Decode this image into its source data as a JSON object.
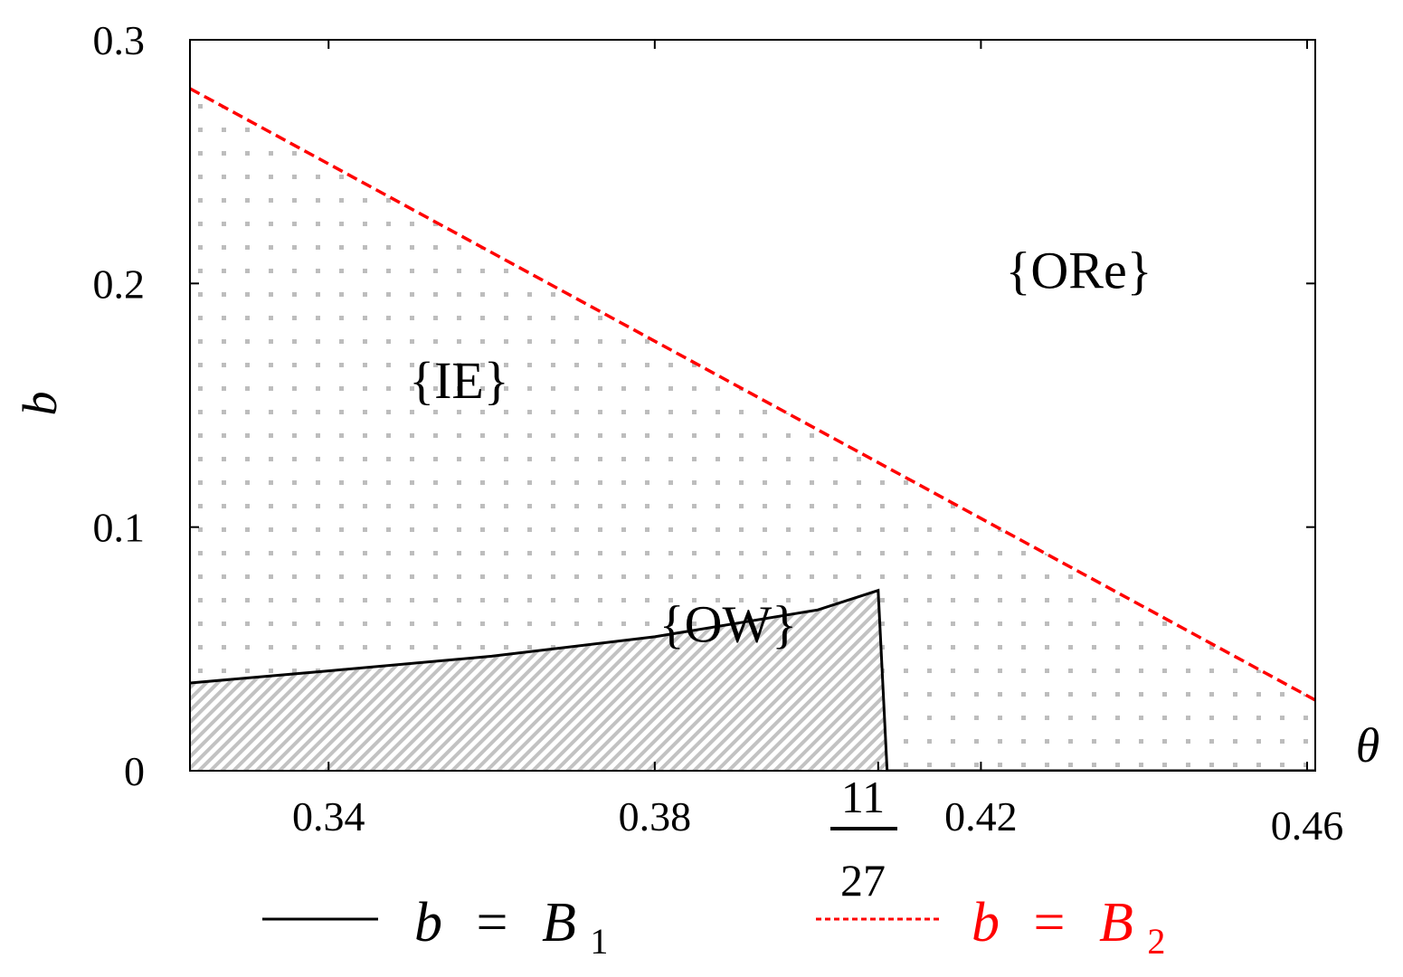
{
  "chart_data": {
    "type": "line",
    "title": "",
    "xlabel": "θ",
    "ylabel": "b",
    "xlim": [
      0.323,
      0.461
    ],
    "ylim": [
      0,
      0.3
    ],
    "x_ticks": [
      {
        "value": 0.34,
        "label": "0.34"
      },
      {
        "value": 0.38,
        "label": "0.38"
      },
      {
        "value": 0.42,
        "label": "0.42"
      },
      {
        "value": 0.46,
        "label": "0.46"
      }
    ],
    "y_ticks": [
      {
        "value": 0,
        "label": "0"
      },
      {
        "value": 0.1,
        "label": "0.1"
      },
      {
        "value": 0.2,
        "label": "0.2"
      },
      {
        "value": 0.3,
        "label": "0.3"
      }
    ],
    "special_tick": {
      "value": 0.4074,
      "numerator": "11",
      "denominator": "27"
    },
    "grid": false,
    "legend_position": "bottom",
    "series": [
      {
        "name": "b = B₁",
        "label_lhs": "b",
        "label_eq": "=",
        "label_rhs": "B",
        "label_sub": "1",
        "color": "#000000",
        "style": "solid",
        "points": [
          [
            0.323,
            0.036
          ],
          [
            0.34,
            0.041
          ],
          [
            0.36,
            0.047
          ],
          [
            0.38,
            0.055
          ],
          [
            0.4,
            0.066
          ],
          [
            0.4074,
            0.074
          ],
          [
            0.4085,
            0.0
          ],
          [
            0.461,
            0.0
          ]
        ]
      },
      {
        "name": "b = B₂",
        "label_lhs": "b",
        "label_eq": "=",
        "label_rhs": "B",
        "label_sub": "2",
        "color": "#ff0000",
        "style": "dashed",
        "points": [
          [
            0.323,
            0.28
          ],
          [
            0.461,
            0.029
          ]
        ]
      }
    ],
    "regions": [
      {
        "label": "{IE}",
        "fill": "dotted",
        "anchor": [
          0.356,
          0.153
        ]
      },
      {
        "label": "{ORe}",
        "fill": "none",
        "anchor": [
          0.432,
          0.198
        ]
      },
      {
        "label": "{OW}",
        "fill": "hatched",
        "anchor": [
          0.389,
          0.053
        ]
      }
    ]
  }
}
